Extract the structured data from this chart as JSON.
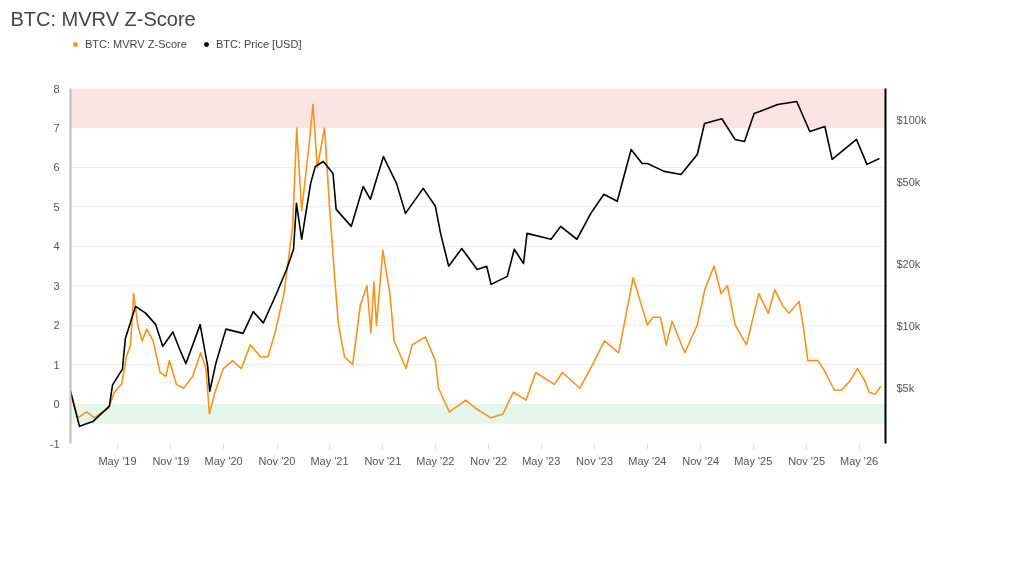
{
  "chart_data": {
    "type": "line",
    "title": "BTC: MVRV Z-Score",
    "legend": "top left",
    "grid": "y",
    "log": "y2",
    "xlim": [
      "2018-11-20",
      "2026-07-31"
    ],
    "xticks": [
      {
        "value": "2019-05-01",
        "label": "May '19"
      },
      {
        "value": "2019-11-01",
        "label": "Nov '19"
      },
      {
        "value": "2020-05-01",
        "label": "May '20"
      },
      {
        "value": "2020-11-01",
        "label": "Nov '20"
      },
      {
        "value": "2021-05-01",
        "label": "May '21"
      },
      {
        "value": "2021-11-01",
        "label": "Nov '21"
      },
      {
        "value": "2022-05-01",
        "label": "May '22"
      },
      {
        "value": "2022-11-01",
        "label": "Nov '22"
      },
      {
        "value": "2023-05-01",
        "label": "May '23"
      },
      {
        "value": "2023-11-01",
        "label": "Nov '23"
      },
      {
        "value": "2024-05-01",
        "label": "May '24"
      },
      {
        "value": "2024-11-01",
        "label": "Nov '24"
      },
      {
        "value": "2025-05-01",
        "label": "May '25"
      },
      {
        "value": "2025-11-01",
        "label": "Nov '25"
      },
      {
        "value": "2026-05-01",
        "label": "May '26"
      }
    ],
    "ylim": [
      -1,
      8
    ],
    "yticks": [
      -1,
      0,
      1,
      2,
      3,
      4,
      5,
      6,
      7,
      8
    ],
    "y2lim": [
      2700,
      143000
    ],
    "y2ticks": [
      {
        "value": 5000,
        "label": "$5k"
      },
      {
        "value": 10000,
        "label": "$10k"
      },
      {
        "value": 20000,
        "label": "$20k"
      },
      {
        "value": 50000,
        "label": "$50k"
      },
      {
        "value": 100000,
        "label": "$100k"
      }
    ],
    "bands": [
      {
        "axis": "y",
        "from": 7,
        "to": 8,
        "color": "#fde4e4"
      },
      {
        "axis": "y",
        "from": -0.5,
        "to": 0,
        "color": "#e4f5ec"
      }
    ],
    "series": [
      {
        "name": "BTC: MVRV Z-Score",
        "color": "#f7931a",
        "x": [
          "2018-11-20",
          "2018-12-15",
          "2019-01-15",
          "2019-02-10",
          "2019-03-10",
          "2019-04-01",
          "2019-04-20",
          "2019-05-15",
          "2019-06-01",
          "2019-06-15",
          "2019-06-26",
          "2019-07-10",
          "2019-07-25",
          "2019-08-10",
          "2019-09-01",
          "2019-09-25",
          "2019-10-15",
          "2019-10-27",
          "2019-11-20",
          "2019-12-15",
          "2020-01-15",
          "2020-02-12",
          "2020-03-01",
          "2020-03-13",
          "2020-04-01",
          "2020-04-30",
          "2020-06-01",
          "2020-07-01",
          "2020-08-01",
          "2020-09-05",
          "2020-10-01",
          "2020-10-25",
          "2020-11-25",
          "2020-12-25",
          "2021-01-08",
          "2021-01-25",
          "2021-02-20",
          "2021-03-05",
          "2021-03-20",
          "2021-04-14",
          "2021-05-01",
          "2021-05-19",
          "2021-06-01",
          "2021-06-22",
          "2021-07-20",
          "2021-08-15",
          "2021-09-07",
          "2021-09-21",
          "2021-10-01",
          "2021-10-10",
          "2021-11-01",
          "2021-11-25",
          "2021-12-10",
          "2022-01-20",
          "2022-02-10",
          "2022-03-28",
          "2022-05-01",
          "2022-05-12",
          "2022-06-18",
          "2022-08-14",
          "2022-09-15",
          "2022-11-09",
          "2022-12-20",
          "2023-01-25",
          "2023-03-10",
          "2023-04-12",
          "2023-06-15",
          "2023-07-13",
          "2023-09-11",
          "2023-10-25",
          "2023-12-05",
          "2024-01-23",
          "2024-03-13",
          "2024-04-15",
          "2024-05-01",
          "2024-05-20",
          "2024-06-15",
          "2024-07-05",
          "2024-07-25",
          "2024-09-07",
          "2024-10-20",
          "2024-11-15",
          "2024-12-17",
          "2025-01-10",
          "2025-02-01",
          "2025-02-28",
          "2025-04-08",
          "2025-05-20",
          "2025-06-22",
          "2025-07-14",
          "2025-08-10",
          "2025-09-01",
          "2025-10-06",
          "2025-10-20",
          "2025-11-05",
          "2025-12-10",
          "2026-01-01",
          "2026-02-05",
          "2026-03-01",
          "2026-04-01",
          "2026-04-25",
          "2026-05-20",
          "2026-06-05",
          "2026-06-25",
          "2026-07-15"
        ],
        "values": [
          0.3,
          -0.35,
          -0.2,
          -0.35,
          -0.2,
          -0.1,
          0.3,
          0.5,
          1.2,
          1.5,
          2.8,
          2.0,
          1.6,
          1.9,
          1.6,
          0.8,
          0.7,
          1.1,
          0.5,
          0.4,
          0.7,
          1.3,
          0.9,
          -0.25,
          0.3,
          0.9,
          1.1,
          0.9,
          1.5,
          1.2,
          1.2,
          1.8,
          2.8,
          4.5,
          7.0,
          4.9,
          6.6,
          7.6,
          6.0,
          7.0,
          5.0,
          3.2,
          2.0,
          1.2,
          1.0,
          2.5,
          3.0,
          1.8,
          3.1,
          2.0,
          3.9,
          2.8,
          1.6,
          0.9,
          1.5,
          1.7,
          1.1,
          0.4,
          -0.2,
          0.1,
          -0.1,
          -0.35,
          -0.25,
          0.3,
          0.1,
          0.8,
          0.5,
          0.8,
          0.4,
          1.0,
          1.6,
          1.3,
          3.2,
          2.4,
          2.0,
          2.2,
          2.2,
          1.5,
          2.1,
          1.3,
          2.0,
          2.9,
          3.5,
          2.8,
          3.0,
          2.0,
          1.5,
          2.8,
          2.3,
          2.9,
          2.5,
          2.3,
          2.6,
          2.0,
          1.1,
          1.1,
          0.85,
          0.35,
          0.35,
          0.6,
          0.9,
          0.6,
          0.3,
          0.25,
          0.45
        ]
      },
      {
        "name": "BTC: Price [USD]",
        "color": "#000000",
        "axis": "y2",
        "x": [
          "2018-11-20",
          "2018-12-21",
          "2019-02-05",
          "2019-04-03",
          "2019-04-14",
          "2019-05-18",
          "2019-05-28",
          "2019-07-02",
          "2019-08-06",
          "2019-09-10",
          "2019-10-04",
          "2019-11-08",
          "2019-12-02",
          "2019-12-23",
          "2020-02-10",
          "2020-03-07",
          "2020-03-14",
          "2020-04-04",
          "2020-05-09",
          "2020-07-07",
          "2020-08-11",
          "2020-09-15",
          "2020-10-30",
          "2020-12-04",
          "2020-12-28",
          "2021-01-07",
          "2021-01-25",
          "2021-02-25",
          "2021-03-13",
          "2021-04-10",
          "2021-05-13",
          "2021-05-24",
          "2021-07-15",
          "2021-08-25",
          "2021-09-19",
          "2021-11-03",
          "2021-12-18",
          "2022-01-18",
          "2022-03-20",
          "2022-05-01",
          "2022-05-19",
          "2022-06-16",
          "2022-07-31",
          "2022-09-22",
          "2022-10-25",
          "2022-11-09",
          "2023-01-04",
          "2023-01-28",
          "2023-03-01",
          "2023-03-13",
          "2023-06-04",
          "2023-07-07",
          "2023-09-01",
          "2023-10-19",
          "2023-12-03",
          "2024-01-18",
          "2024-03-06",
          "2024-04-13",
          "2024-05-01",
          "2024-06-28",
          "2024-08-25",
          "2024-10-20",
          "2024-11-14",
          "2025-01-13",
          "2025-02-27",
          "2025-04-01",
          "2025-05-04",
          "2025-07-24",
          "2025-09-28",
          "2025-11-12",
          "2026-01-03",
          "2026-01-28",
          "2026-04-22",
          "2026-05-28",
          "2026-07-10"
        ],
        "values": [
          4840,
          3270,
          3450,
          4100,
          5200,
          6200,
          8700,
          12500,
          11600,
          10200,
          8000,
          9400,
          7700,
          6600,
          10200,
          6400,
          4840,
          6600,
          9700,
          9250,
          11800,
          10400,
          14400,
          18900,
          23700,
          39600,
          26500,
          49500,
          59800,
          63200,
          55300,
          37000,
          30600,
          47800,
          41400,
          66800,
          49500,
          35400,
          46800,
          38300,
          28300,
          19600,
          23900,
          18900,
          19600,
          16000,
          17500,
          23700,
          20200,
          28300,
          26500,
          30600,
          26500,
          35400,
          43800,
          40500,
          72300,
          61800,
          61800,
          56600,
          54700,
          68400,
          96700,
          102000,
          80900,
          79100,
          108000,
          119500,
          123700,
          88400,
          93500,
          64700,
          80900,
          61200,
          65400
        ]
      }
    ]
  }
}
